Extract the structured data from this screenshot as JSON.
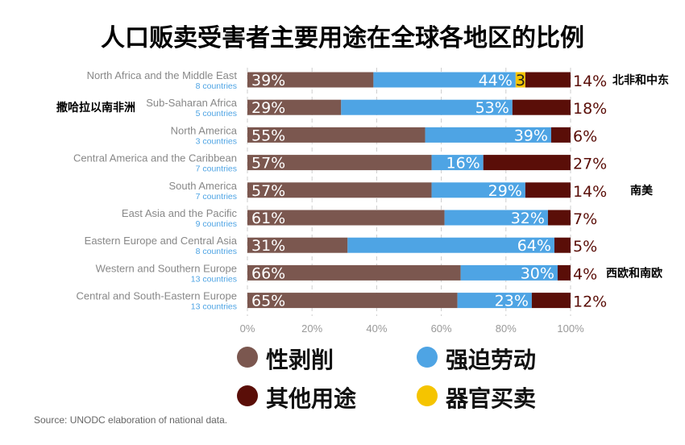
{
  "chart_data": {
    "type": "bar",
    "orientation": "horizontal",
    "stacked": true,
    "title": "人口贩卖受害者主要用途在全球各地区的比例",
    "categories": [
      "North Africa and the Middle East",
      "Sub-Saharan Africa",
      "North America",
      "Central America and the Caribbean",
      "South America",
      "East Asia and the Pacific",
      "Eastern Europe and Central Asia",
      "Western and Southern Europe",
      "Central and South-Eastern Europe"
    ],
    "sublabels": [
      "8 countries",
      "5 countries",
      "3 countries",
      "7 countries",
      "7 countries",
      "9 countries",
      "8 countries",
      "13 countries",
      "13 countries"
    ],
    "annotations": [
      "北非和中东",
      "撒哈拉以南非洲",
      "",
      "",
      "南美",
      "",
      "",
      "西欧和南欧",
      ""
    ],
    "series": [
      {
        "name": "性剥削",
        "color": "#7b574f",
        "values": [
          39,
          29,
          55,
          57,
          57,
          61,
          31,
          66,
          65
        ]
      },
      {
        "name": "强迫劳动",
        "color": "#4ea4e4",
        "values": [
          44,
          53,
          39,
          16,
          29,
          32,
          64,
          30,
          23
        ]
      },
      {
        "name": "器官买卖",
        "color": "#f5c400",
        "values": [
          3,
          0,
          0,
          0,
          0,
          0,
          0,
          0,
          0
        ]
      },
      {
        "name": "其他用途",
        "color": "#5a0e08",
        "values": [
          14,
          18,
          6,
          27,
          14,
          7,
          5,
          4,
          12
        ]
      }
    ],
    "xlim": [
      0,
      100
    ],
    "xticks": [
      "0%",
      "20%",
      "40%",
      "60%",
      "80%",
      "100%"
    ],
    "grid": true,
    "legend_position": "bottom",
    "source": "Source: UNODC elaboration of national data."
  }
}
